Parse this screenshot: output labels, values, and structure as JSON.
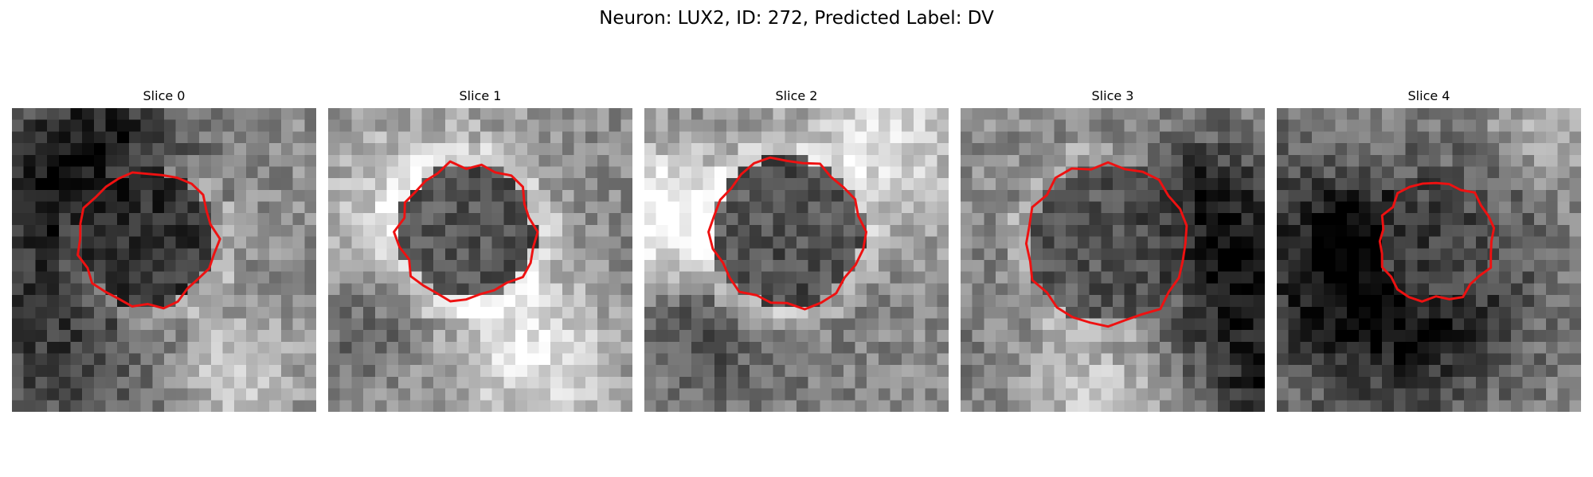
{
  "suptitle": "Neuron: LUX2, ID: 272, Predicted Label: DV",
  "contour_color": "#ee1111",
  "panels": [
    {
      "title": "Slice 0",
      "seed": 11,
      "center_col": 11.6,
      "center_row": 11.2,
      "radius": 5.8,
      "tone": 0.22
    },
    {
      "title": "Slice 1",
      "seed": 23,
      "center_col": 11.8,
      "center_row": 10.6,
      "radius": 5.8,
      "tone": 0.24
    },
    {
      "title": "Slice 2",
      "seed": 37,
      "center_col": 12.2,
      "center_row": 10.6,
      "radius": 6.4,
      "tone": 0.28
    },
    {
      "title": "Slice 3",
      "seed": 41,
      "center_col": 12.6,
      "center_row": 11.6,
      "radius": 6.8,
      "tone": 0.34
    },
    {
      "title": "Slice 4",
      "seed": 53,
      "center_col": 13.6,
      "center_row": 11.4,
      "radius": 5.0,
      "tone": 0.38
    }
  ]
}
